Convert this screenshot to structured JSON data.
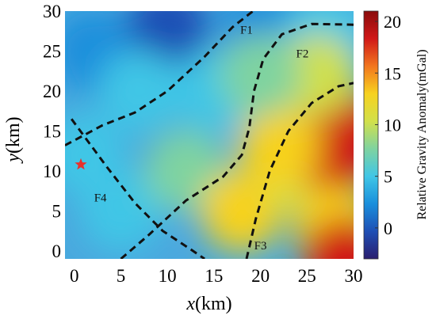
{
  "chart_data": {
    "type": "heatmap",
    "title": "",
    "xlabel": {
      "var": "x",
      "unit": "(km)"
    },
    "ylabel": {
      "var": "y",
      "unit": "(km)"
    },
    "xlim": [
      -1,
      30
    ],
    "ylim": [
      -1,
      30
    ],
    "x_ticks": [
      0,
      5,
      10,
      15,
      20,
      25,
      30
    ],
    "y_ticks": [
      0,
      5,
      10,
      15,
      20,
      25,
      30
    ],
    "colorbar": {
      "label": "Relative Gravity Anomaly(mGal)",
      "range": [
        -3,
        21
      ],
      "ticks": [
        0,
        5,
        10,
        15,
        20
      ],
      "colors": [
        "#2a1e6e",
        "#1f4fb5",
        "#1a8fdc",
        "#40c6e6",
        "#7fd3a0",
        "#d2e04a",
        "#f7d21f",
        "#f2761f",
        "#d01818",
        "#8a0b0b"
      ]
    },
    "anomalies_mgal": [
      {
        "x": 10,
        "y": 28,
        "value": -1
      },
      {
        "x": 2,
        "y": 25,
        "value": 2
      },
      {
        "x": 20,
        "y": 28,
        "value": 3
      },
      {
        "x": 27,
        "y": 27,
        "value": 6
      },
      {
        "x": 7,
        "y": 20,
        "value": 5
      },
      {
        "x": 15,
        "y": 20,
        "value": 6
      },
      {
        "x": 1,
        "y": 12,
        "value": 5
      },
      {
        "x": 5,
        "y": 5,
        "value": 6
      },
      {
        "x": 12,
        "y": 10,
        "value": 8
      },
      {
        "x": 18,
        "y": 5,
        "value": 14
      },
      {
        "x": 24,
        "y": 10,
        "value": 11
      },
      {
        "x": 28,
        "y": 12,
        "value": 18
      },
      {
        "x": 29,
        "y": 15,
        "value": 17
      },
      {
        "x": 28,
        "y": 3,
        "value": 12
      },
      {
        "x": 29,
        "y": -1,
        "value": 19
      },
      {
        "x": 22,
        "y": 13,
        "value": 13
      },
      {
        "x": 26,
        "y": 22,
        "value": 9
      },
      {
        "x": 20,
        "y": 22,
        "value": 8
      }
    ],
    "faults": [
      {
        "name": "F1",
        "label_at": [
          18.5,
          27.2
        ],
        "path": [
          [
            -1,
            13.2
          ],
          [
            3,
            15.7
          ],
          [
            6.5,
            17.3
          ],
          [
            10,
            20
          ],
          [
            14,
            24.3
          ],
          [
            17,
            28
          ],
          [
            19.2,
            30
          ]
        ]
      },
      {
        "name": "F2",
        "label_at": [
          24.5,
          24.2
        ],
        "path": [
          [
            5,
            -1
          ],
          [
            8,
            2
          ],
          [
            12,
            6.3
          ],
          [
            16,
            9.3
          ],
          [
            18,
            12
          ],
          [
            18.8,
            15.4
          ],
          [
            19.3,
            20
          ],
          [
            20.3,
            24
          ],
          [
            22.3,
            27.1
          ],
          [
            25.5,
            28.4
          ],
          [
            30,
            28.3
          ]
        ]
      },
      {
        "name": "F3",
        "label_at": [
          20,
          0.2
        ],
        "path": [
          [
            18.5,
            -1
          ],
          [
            19.5,
            4
          ],
          [
            21,
            10
          ],
          [
            23,
            15
          ],
          [
            25.5,
            18.5
          ],
          [
            28.4,
            20.6
          ],
          [
            30,
            21
          ]
        ]
      },
      {
        "name": "F4",
        "label_at": [
          2.8,
          6.2
        ],
        "path": [
          [
            -0.3,
            16.5
          ],
          [
            3.5,
            10.5
          ],
          [
            6.5,
            6
          ],
          [
            9.5,
            2.5
          ],
          [
            12.5,
            0.2
          ],
          [
            14,
            -1
          ]
        ]
      }
    ],
    "markers": [
      {
        "type": "star",
        "x": 0.7,
        "y": 10.8,
        "color": "#e8302a"
      }
    ]
  }
}
